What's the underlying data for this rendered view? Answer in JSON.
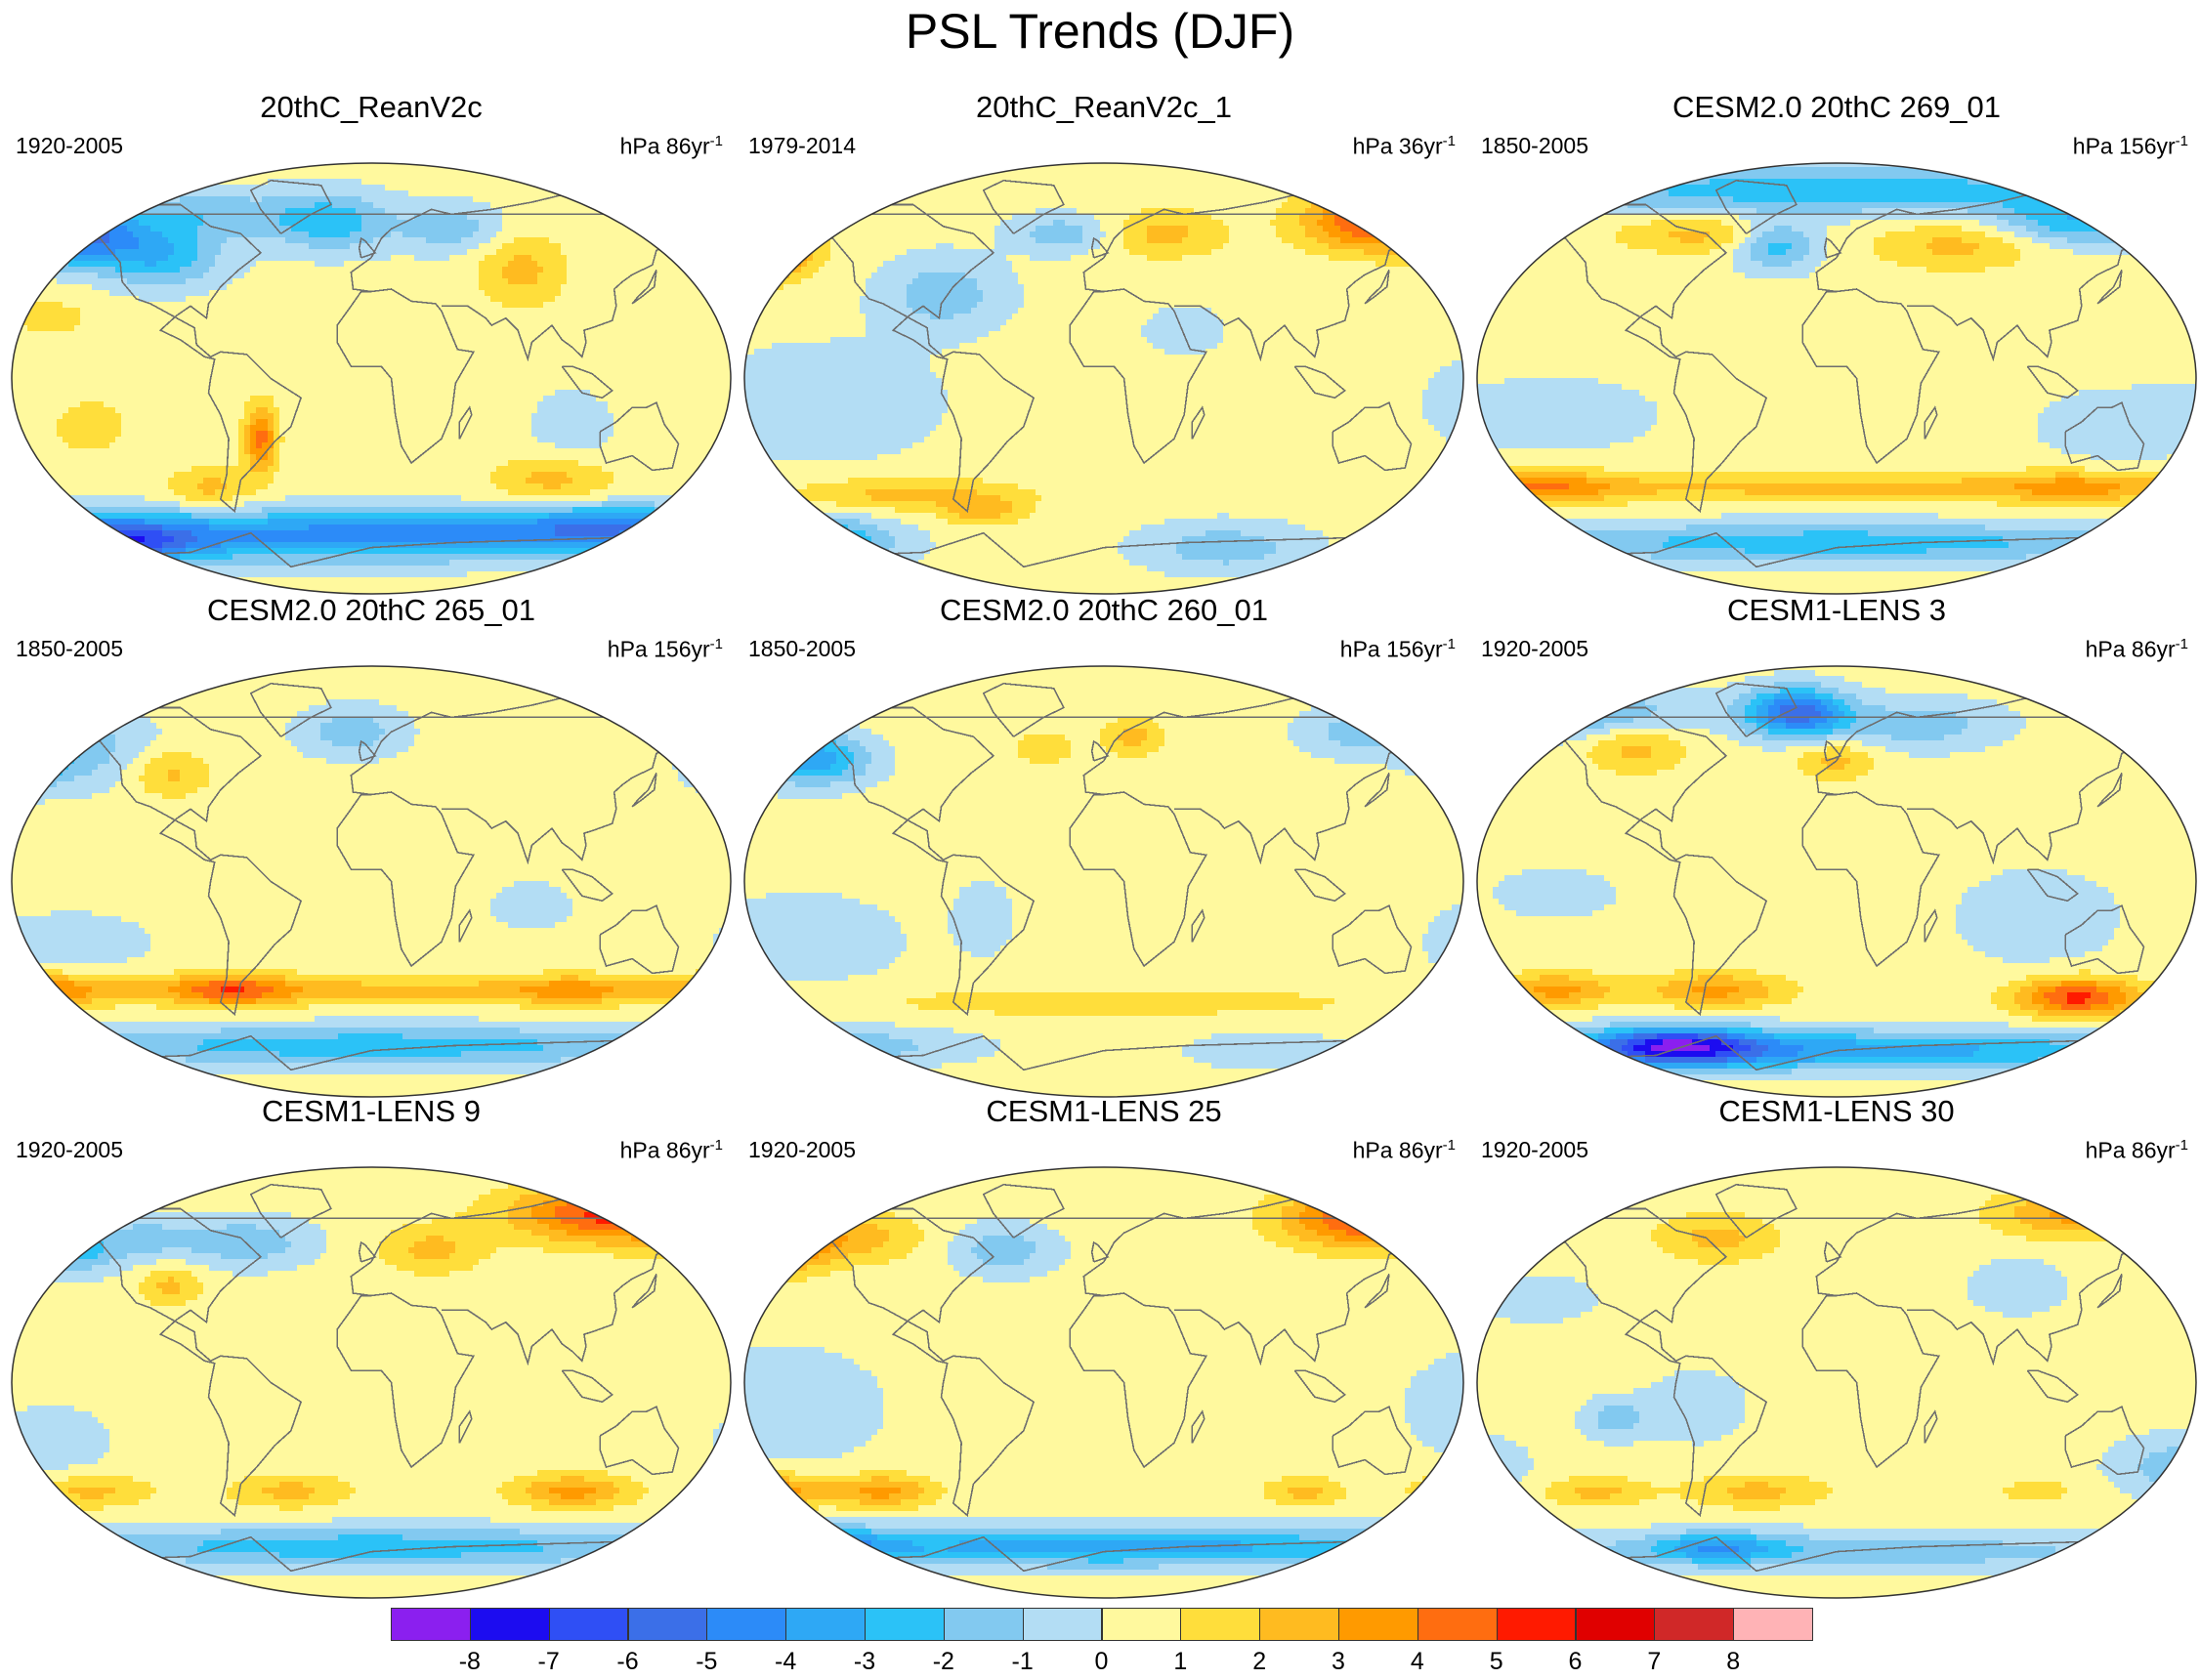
{
  "title": "PSL Trends (DJF)",
  "panels": [
    {
      "title": "20thC_ReanV2c",
      "period": "1920-2005",
      "units": "hPa 86yr",
      "units_exp": "-1",
      "blobs": [
        [
          -150,
          60,
          35,
          12,
          -6
        ],
        [
          -105,
          50,
          30,
          12,
          -3
        ],
        [
          -80,
          68,
          40,
          10,
          -2
        ],
        [
          -20,
          65,
          30,
          12,
          -3
        ],
        [
          40,
          62,
          25,
          10,
          -2
        ],
        [
          75,
          45,
          22,
          15,
          2
        ],
        [
          -160,
          25,
          25,
          10,
          1
        ],
        [
          -55,
          -25,
          8,
          14,
          4
        ],
        [
          90,
          -42,
          30,
          10,
          2
        ],
        [
          -80,
          -45,
          20,
          8,
          2
        ],
        [
          0,
          -65,
          180,
          10,
          -5
        ],
        [
          120,
          -60,
          45,
          8,
          -3
        ],
        [
          -130,
          -68,
          40,
          10,
          -5
        ],
        [
          100,
          -20,
          20,
          15,
          -1
        ],
        [
          -140,
          -20,
          25,
          15,
          1
        ]
      ]
    },
    {
      "title": "20thC_ReanV2c_1",
      "period": "1979-2014",
      "units": "hPa 36yr",
      "units_exp": "-1",
      "blobs": [
        [
          135,
          65,
          35,
          12,
          5
        ],
        [
          -165,
          52,
          15,
          8,
          5
        ],
        [
          -170,
          55,
          30,
          15,
          2
        ],
        [
          -140,
          -10,
          60,
          25,
          -1
        ],
        [
          -80,
          35,
          30,
          15,
          -2
        ],
        [
          -20,
          60,
          25,
          8,
          -2
        ],
        [
          30,
          60,
          30,
          10,
          2
        ],
        [
          -100,
          -48,
          60,
          7,
          2
        ],
        [
          -60,
          -55,
          20,
          6,
          2
        ],
        [
          -150,
          -68,
          40,
          10,
          -5
        ],
        [
          60,
          -70,
          40,
          10,
          -2
        ],
        [
          40,
          20,
          20,
          10,
          -1
        ]
      ]
    },
    {
      "title": "CESM2.0 20thC 269_01",
      "period": "1850-2005",
      "units": "hPa 156yr",
      "units_exp": "-1",
      "blobs": [
        [
          0,
          78,
          180,
          10,
          -3
        ],
        [
          120,
          65,
          40,
          10,
          -3
        ],
        [
          -30,
          55,
          20,
          10,
          -3
        ],
        [
          60,
          55,
          40,
          10,
          2
        ],
        [
          -70,
          60,
          40,
          8,
          2
        ],
        [
          0,
          -45,
          180,
          6,
          2
        ],
        [
          -150,
          -45,
          40,
          7,
          3
        ],
        [
          120,
          -45,
          40,
          7,
          2
        ],
        [
          0,
          -68,
          180,
          8,
          -3
        ],
        [
          -140,
          -15,
          50,
          15,
          -1
        ],
        [
          140,
          -20,
          40,
          15,
          -1
        ]
      ]
    },
    {
      "title": "CESM2.0 20thC 265_01",
      "period": "1850-2005",
      "units": "hPa 156yr",
      "units_exp": "-1",
      "blobs": [
        [
          -175,
          50,
          20,
          10,
          -4
        ],
        [
          -150,
          55,
          40,
          15,
          -2
        ],
        [
          -10,
          62,
          25,
          10,
          -2
        ],
        [
          -100,
          45,
          20,
          10,
          2
        ],
        [
          0,
          -45,
          180,
          6,
          2
        ],
        [
          -170,
          -45,
          40,
          7,
          3
        ],
        [
          -70,
          -45,
          30,
          7,
          3
        ],
        [
          100,
          -45,
          30,
          6,
          2
        ],
        [
          0,
          -68,
          180,
          8,
          -3
        ],
        [
          -150,
          -25,
          40,
          12,
          -1
        ],
        [
          80,
          -10,
          20,
          10,
          -1
        ]
      ]
    },
    {
      "title": "CESM2.0 20thC 260_01",
      "period": "1850-2005",
      "units": "hPa 156yr",
      "units_exp": "-1",
      "blobs": [
        [
          -170,
          55,
          30,
          12,
          -3
        ],
        [
          130,
          62,
          30,
          10,
          -2
        ],
        [
          -140,
          50,
          25,
          10,
          -3
        ],
        [
          15,
          60,
          15,
          8,
          2
        ],
        [
          -30,
          55,
          20,
          10,
          1
        ],
        [
          -150,
          -25,
          50,
          20,
          -1
        ],
        [
          0,
          -50,
          180,
          8,
          1
        ],
        [
          -130,
          -68,
          60,
          8,
          -2
        ],
        [
          80,
          -70,
          40,
          8,
          -1
        ],
        [
          -60,
          -15,
          15,
          15,
          -1
        ]
      ]
    },
    {
      "title": "CESM1-LENS 3",
      "period": "1920-2005",
      "units": "hPa 86yr",
      "units_exp": "-1",
      "blobs": [
        [
          -20,
          70,
          25,
          10,
          -6
        ],
        [
          -140,
          70,
          60,
          10,
          -3
        ],
        [
          40,
          65,
          40,
          10,
          -2
        ],
        [
          -100,
          55,
          25,
          10,
          2
        ],
        [
          0,
          50,
          20,
          8,
          2
        ],
        [
          120,
          -48,
          30,
          8,
          5
        ],
        [
          -140,
          -45,
          30,
          7,
          3
        ],
        [
          -60,
          -45,
          35,
          7,
          3
        ],
        [
          0,
          -70,
          180,
          8,
          -4
        ],
        [
          -80,
          -68,
          40,
          8,
          -6
        ],
        [
          100,
          -15,
          40,
          20,
          -1
        ],
        [
          -140,
          -5,
          30,
          10,
          -1
        ]
      ]
    },
    {
      "title": "CESM1-LENS 9",
      "period": "1920-2005",
      "units": "hPa 86yr",
      "units_exp": "-1",
      "blobs": [
        [
          120,
          70,
          50,
          12,
          5
        ],
        [
          -175,
          65,
          40,
          12,
          3
        ],
        [
          -120,
          60,
          35,
          10,
          -2
        ],
        [
          -60,
          58,
          30,
          10,
          -2
        ],
        [
          -150,
          55,
          20,
          10,
          -3
        ],
        [
          30,
          55,
          25,
          10,
          2
        ],
        [
          -100,
          40,
          15,
          8,
          2
        ],
        [
          100,
          -45,
          30,
          7,
          3
        ],
        [
          -140,
          -45,
          30,
          7,
          2
        ],
        [
          -40,
          -45,
          30,
          7,
          2
        ],
        [
          0,
          -68,
          180,
          8,
          -3
        ],
        [
          -160,
          -25,
          30,
          15,
          -1
        ]
      ]
    },
    {
      "title": "CESM1-LENS 25",
      "period": "1920-2005",
      "units": "hPa 86yr",
      "units_exp": "-1",
      "blobs": [
        [
          130,
          68,
          40,
          12,
          5
        ],
        [
          -160,
          58,
          25,
          12,
          4
        ],
        [
          -120,
          60,
          30,
          10,
          2
        ],
        [
          -50,
          55,
          25,
          10,
          -2
        ],
        [
          -170,
          -45,
          30,
          7,
          4
        ],
        [
          -110,
          -45,
          25,
          7,
          3
        ],
        [
          100,
          -45,
          20,
          6,
          2
        ],
        [
          0,
          -68,
          180,
          8,
          -4
        ],
        [
          -160,
          -68,
          40,
          8,
          -6
        ],
        [
          -160,
          -10,
          50,
          25,
          -1
        ]
      ]
    },
    {
      "title": "CESM1-LENS 30",
      "period": "1920-2005",
      "units": "hPa 86yr",
      "units_exp": "-1",
      "blobs": [
        [
          120,
          70,
          40,
          10,
          3
        ],
        [
          -170,
          60,
          30,
          10,
          2
        ],
        [
          -60,
          60,
          30,
          10,
          2
        ],
        [
          90,
          40,
          25,
          12,
          -1
        ],
        [
          -150,
          35,
          30,
          10,
          -1
        ],
        [
          -70,
          -10,
          25,
          15,
          -1
        ],
        [
          -110,
          -15,
          15,
          8,
          -2
        ],
        [
          170,
          -35,
          30,
          12,
          -2
        ],
        [
          -40,
          -45,
          35,
          7,
          2
        ],
        [
          -120,
          -45,
          25,
          6,
          2
        ],
        [
          100,
          -45,
          25,
          6,
          1
        ],
        [
          0,
          -70,
          180,
          8,
          -2
        ],
        [
          -60,
          -68,
          30,
          6,
          -3
        ]
      ]
    }
  ],
  "colorbar": {
    "labels": [
      "-8",
      "-7",
      "-6",
      "-5",
      "-4",
      "-3",
      "-2",
      "-1",
      "0",
      "1",
      "2",
      "3",
      "4",
      "5",
      "6",
      "7",
      "8"
    ],
    "colors": [
      "#8b1fef",
      "#1c0cf0",
      "#2f4ff5",
      "#3b6fe8",
      "#2c8bf8",
      "#2ea8f5",
      "#2bc2f7",
      "#82c9f0",
      "#b3ddf4",
      "#fff99e",
      "#ffde3b",
      "#ffbb20",
      "#ff9a00",
      "#ff6d10",
      "#ff1a00",
      "#e00000",
      "#d02828",
      "#ffb3b6"
    ]
  },
  "chart_data": {
    "type": "heatmap",
    "title": "PSL Trends (DJF)",
    "projection": "Winkel-tripel style global maps, 3x3 panel grid, Pacific-centered",
    "color_levels": [
      -8,
      -7,
      -6,
      -5,
      -4,
      -3,
      -2,
      -1,
      0,
      1,
      2,
      3,
      4,
      5,
      6,
      7,
      8
    ],
    "units": "hPa per period",
    "panels": [
      "20thC_ReanV2c",
      "20thC_ReanV2c_1",
      "CESM2.0 20thC 269_01",
      "CESM2.0 20thC 265_01",
      "CESM2.0 20thC 260_01",
      "CESM1-LENS 3",
      "CESM1-LENS 9",
      "CESM1-LENS 25",
      "CESM1-LENS 30"
    ]
  }
}
